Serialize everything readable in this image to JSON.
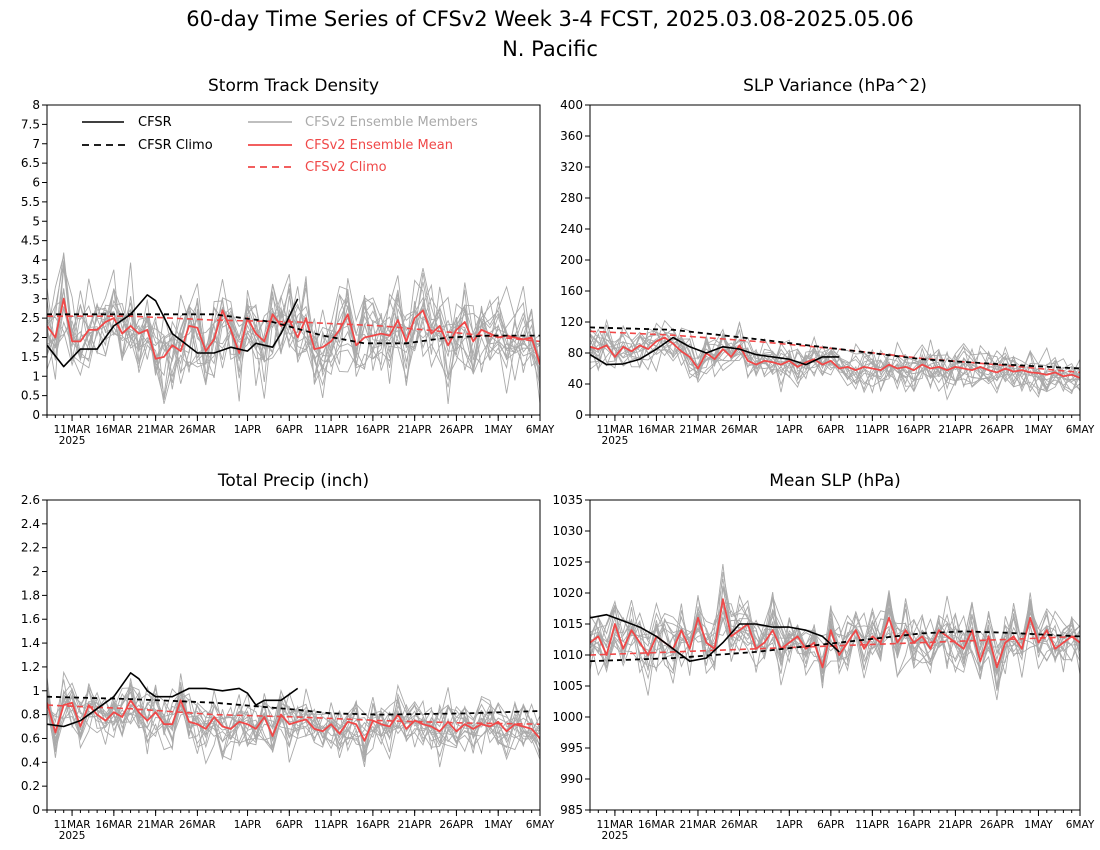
{
  "figure": {
    "title_line1": "60-day Time Series of CFSv2 Week 3-4 FCST, 2025.03.08-2025.05.06",
    "title_line2": "N. Pacific"
  },
  "colors": {
    "cfsr": "#000000",
    "ensemble_member": "#aaaaaa",
    "ensemble_mean": "#f04848",
    "cfsv2_climo": "#f04848"
  },
  "legend": {
    "cfsr": "CFSR",
    "cfsr_climo": "CFSR Climo",
    "members": "CFSv2 Ensemble Members",
    "mean": "CFSv2 Ensemble Mean",
    "cfsv2_climo": "CFSv2 Climo"
  },
  "x_axis": {
    "ticks": [
      {
        "day": 3,
        "label": "11MAR"
      },
      {
        "day": 8,
        "label": "16MAR"
      },
      {
        "day": 13,
        "label": "21MAR"
      },
      {
        "day": 18,
        "label": "26MAR"
      },
      {
        "day": 24,
        "label": "1APR"
      },
      {
        "day": 29,
        "label": "6APR"
      },
      {
        "day": 34,
        "label": "11APR"
      },
      {
        "day": 39,
        "label": "16APR"
      },
      {
        "day": 44,
        "label": "21APR"
      },
      {
        "day": 49,
        "label": "26APR"
      },
      {
        "day": 54,
        "label": "1MAY"
      },
      {
        "day": 59,
        "label": "6MAY"
      }
    ],
    "year_label": "2025",
    "range": [
      0,
      59
    ]
  },
  "chart_data": [
    {
      "type": "line",
      "title": "Storm Track Density",
      "ylim": [
        0,
        8
      ],
      "yticks": [
        "0",
        "0.5",
        "1",
        "1.5",
        "2",
        "2.5",
        "3",
        "3.5",
        "4",
        "4.5",
        "5",
        "5.5",
        "6",
        "6.5",
        "7",
        "7.5",
        "8"
      ],
      "has_legend": true,
      "member_stats": {
        "count": 16,
        "spread": 0.7
      },
      "series": [
        {
          "role": "cfsr",
          "x": [
            0,
            2,
            4,
            6,
            8,
            10,
            12,
            13,
            15,
            18,
            20,
            22,
            24,
            25,
            27,
            28,
            30
          ],
          "y": [
            1.8,
            1.25,
            1.7,
            1.7,
            2.3,
            2.6,
            3.1,
            2.95,
            2.1,
            1.6,
            1.6,
            1.75,
            1.65,
            1.85,
            1.75,
            2.1,
            3.0
          ]
        },
        {
          "role": "cfsr_climo",
          "x": [
            0,
            10,
            20,
            27,
            33,
            38,
            43,
            48,
            53,
            59
          ],
          "y": [
            2.6,
            2.6,
            2.6,
            2.4,
            2.05,
            1.85,
            1.85,
            2.0,
            2.05,
            2.05
          ]
        },
        {
          "role": "mean",
          "x": [
            0,
            1,
            2,
            3,
            4,
            5,
            6,
            7,
            8,
            9,
            10,
            11,
            12,
            13,
            14,
            15,
            16,
            17,
            18,
            19,
            20,
            21,
            22,
            23,
            24,
            25,
            26,
            27,
            28,
            29,
            30,
            31,
            32,
            33,
            34,
            35,
            36,
            37,
            38,
            39,
            40,
            41,
            42,
            43,
            44,
            45,
            46,
            47,
            48,
            49,
            50,
            51,
            52,
            53,
            54,
            55,
            56,
            57,
            58,
            59
          ],
          "y": [
            2.3,
            2.0,
            3.0,
            1.9,
            1.9,
            2.2,
            2.2,
            2.4,
            2.5,
            2.1,
            2.3,
            2.1,
            2.2,
            1.45,
            1.5,
            1.8,
            1.65,
            2.3,
            2.25,
            1.65,
            1.95,
            2.7,
            2.2,
            1.6,
            2.5,
            2.1,
            1.9,
            2.6,
            2.3,
            2.45,
            2.0,
            2.5,
            1.7,
            1.75,
            1.9,
            2.2,
            2.6,
            1.8,
            2.0,
            2.05,
            2.1,
            2.05,
            2.45,
            1.9,
            2.5,
            2.7,
            2.1,
            2.3,
            1.8,
            2.2,
            2.4,
            1.9,
            2.2,
            2.1,
            2.0,
            2.05,
            2.0,
            1.95,
            2.0,
            1.3
          ]
        },
        {
          "role": "cfsv2_climo",
          "x": [
            0,
            10,
            20,
            30,
            40,
            50,
            59
          ],
          "y": [
            2.55,
            2.55,
            2.45,
            2.4,
            2.3,
            2.1,
            1.9
          ]
        }
      ]
    },
    {
      "type": "line",
      "title": "SLP Variance (hPa^2)",
      "ylim": [
        0,
        400
      ],
      "yticks": [
        "0",
        "40",
        "80",
        "120",
        "160",
        "200",
        "240",
        "280",
        "320",
        "360",
        "400"
      ],
      "has_legend": false,
      "member_stats": {
        "count": 16,
        "spread": 17
      },
      "series": [
        {
          "role": "cfsr",
          "x": [
            0,
            2,
            4,
            6,
            8,
            10,
            12,
            14,
            16,
            18,
            20,
            22,
            24,
            26,
            28,
            30
          ],
          "y": [
            78,
            65,
            66,
            72,
            85,
            100,
            88,
            80,
            88,
            85,
            78,
            75,
            72,
            65,
            75,
            75
          ]
        },
        {
          "role": "cfsr_climo",
          "x": [
            0,
            10,
            20,
            30,
            40,
            50,
            59
          ],
          "y": [
            113,
            110,
            98,
            85,
            72,
            65,
            60
          ]
        },
        {
          "role": "mean",
          "x": [
            0,
            1,
            2,
            3,
            4,
            5,
            6,
            7,
            8,
            9,
            10,
            11,
            12,
            13,
            14,
            15,
            16,
            17,
            18,
            19,
            20,
            21,
            22,
            23,
            24,
            25,
            26,
            27,
            28,
            29,
            30,
            31,
            32,
            33,
            34,
            35,
            36,
            37,
            38,
            39,
            40,
            41,
            42,
            43,
            44,
            45,
            46,
            47,
            48,
            49,
            50,
            51,
            52,
            53,
            54,
            55,
            56,
            57,
            58,
            59
          ],
          "y": [
            88,
            85,
            90,
            75,
            88,
            82,
            90,
            85,
            95,
            100,
            92,
            82,
            75,
            60,
            80,
            72,
            85,
            75,
            90,
            70,
            65,
            70,
            68,
            65,
            70,
            62,
            68,
            72,
            65,
            70,
            60,
            62,
            58,
            62,
            60,
            58,
            65,
            60,
            62,
            58,
            65,
            60,
            62,
            58,
            62,
            60,
            58,
            62,
            58,
            55,
            60,
            56,
            58,
            55,
            54,
            52,
            55,
            50,
            52,
            48
          ]
        },
        {
          "role": "cfsv2_climo",
          "x": [
            0,
            10,
            20,
            30,
            40,
            50,
            59
          ],
          "y": [
            108,
            103,
            95,
            85,
            73,
            64,
            55
          ]
        }
      ]
    },
    {
      "type": "line",
      "title": "Total Precip (inch)",
      "ylim": [
        0,
        2.6
      ],
      "yticks": [
        "0",
        "0.2",
        "0.4",
        "0.6",
        "0.8",
        "1",
        "1.2",
        "1.4",
        "1.6",
        "1.8",
        "2",
        "2.2",
        "2.4",
        "2.6"
      ],
      "has_legend": false,
      "member_stats": {
        "count": 16,
        "spread": 0.14
      },
      "series": [
        {
          "role": "cfsr",
          "x": [
            0,
            2,
            4,
            6,
            8,
            10,
            11,
            12,
            13,
            15,
            17,
            19,
            21,
            23,
            24,
            25,
            26,
            28,
            30
          ],
          "y": [
            0.72,
            0.7,
            0.75,
            0.85,
            0.95,
            1.15,
            1.1,
            1.0,
            0.95,
            0.95,
            1.02,
            1.02,
            1.0,
            1.02,
            0.98,
            0.88,
            0.92,
            0.92,
            1.02
          ]
        },
        {
          "role": "cfsr_climo",
          "x": [
            0,
            10,
            20,
            30,
            34,
            40,
            50,
            59
          ],
          "y": [
            0.95,
            0.93,
            0.9,
            0.84,
            0.81,
            0.8,
            0.81,
            0.83
          ]
        },
        {
          "role": "mean",
          "x": [
            0,
            1,
            2,
            3,
            4,
            5,
            6,
            7,
            8,
            9,
            10,
            11,
            12,
            13,
            14,
            15,
            16,
            17,
            18,
            19,
            20,
            21,
            22,
            23,
            24,
            25,
            26,
            27,
            28,
            29,
            30,
            31,
            32,
            33,
            34,
            35,
            36,
            37,
            38,
            39,
            40,
            41,
            42,
            43,
            44,
            45,
            46,
            47,
            48,
            49,
            50,
            51,
            52,
            53,
            54,
            55,
            56,
            57,
            58,
            59
          ],
          "y": [
            0.9,
            0.65,
            0.88,
            0.9,
            0.7,
            0.88,
            0.8,
            0.75,
            0.82,
            0.78,
            0.92,
            0.82,
            0.75,
            0.82,
            0.72,
            0.72,
            0.92,
            0.74,
            0.72,
            0.68,
            0.78,
            0.7,
            0.68,
            0.74,
            0.72,
            0.68,
            0.78,
            0.62,
            0.8,
            0.72,
            0.74,
            0.76,
            0.68,
            0.66,
            0.72,
            0.64,
            0.74,
            0.72,
            0.58,
            0.75,
            0.72,
            0.7,
            0.8,
            0.68,
            0.75,
            0.72,
            0.7,
            0.66,
            0.74,
            0.66,
            0.72,
            0.68,
            0.72,
            0.7,
            0.74,
            0.66,
            0.72,
            0.7,
            0.68,
            0.6
          ]
        },
        {
          "role": "cfsv2_climo",
          "x": [
            0,
            10,
            20,
            30,
            40,
            50,
            59
          ],
          "y": [
            0.88,
            0.85,
            0.8,
            0.78,
            0.75,
            0.73,
            0.72
          ]
        }
      ]
    },
    {
      "type": "line",
      "title": "Mean SLP (hPa)",
      "ylim": [
        985,
        1035
      ],
      "yticks": [
        "985",
        "990",
        "995",
        "1000",
        "1005",
        "1010",
        "1015",
        "1020",
        "1025",
        "1030",
        "1035"
      ],
      "has_legend": false,
      "member_stats": {
        "count": 16,
        "spread": 3.0
      },
      "series": [
        {
          "role": "cfsr",
          "x": [
            0,
            2,
            4,
            6,
            8,
            10,
            12,
            14,
            16,
            18,
            20,
            22,
            24,
            26,
            28,
            30
          ],
          "y": [
            1016,
            1016.5,
            1015.5,
            1014.5,
            1013,
            1011,
            1009,
            1009.5,
            1012,
            1015,
            1015,
            1014.5,
            1014.5,
            1014,
            1013,
            1010.5
          ]
        },
        {
          "role": "cfsr_climo",
          "x": [
            0,
            10,
            20,
            30,
            40,
            45,
            50,
            59
          ],
          "y": [
            1009,
            1009.5,
            1010.5,
            1012,
            1013.5,
            1013.8,
            1013.6,
            1013
          ]
        },
        {
          "role": "mean",
          "x": [
            0,
            1,
            2,
            3,
            4,
            5,
            6,
            7,
            8,
            9,
            10,
            11,
            12,
            13,
            14,
            15,
            16,
            17,
            18,
            19,
            20,
            21,
            22,
            23,
            24,
            25,
            26,
            27,
            28,
            29,
            30,
            31,
            32,
            33,
            34,
            35,
            36,
            37,
            38,
            39,
            40,
            41,
            42,
            43,
            44,
            45,
            46,
            47,
            48,
            49,
            50,
            51,
            52,
            53,
            54,
            55,
            56,
            57,
            58,
            59
          ],
          "y": [
            1012,
            1013,
            1010,
            1015,
            1011,
            1014,
            1012,
            1010,
            1013,
            1012,
            1011,
            1014,
            1011,
            1016,
            1012,
            1011,
            1019,
            1013,
            1014,
            1015,
            1011,
            1012,
            1014,
            1011,
            1012,
            1013,
            1011,
            1012,
            1008,
            1014,
            1010,
            1012,
            1014,
            1011,
            1013,
            1012,
            1016,
            1012,
            1014,
            1012,
            1013,
            1011,
            1014,
            1013,
            1012,
            1011,
            1014,
            1009,
            1013,
            1008,
            1012,
            1013,
            1011,
            1016,
            1012,
            1014,
            1011,
            1012,
            1013,
            1012
          ]
        },
        {
          "role": "cfsv2_climo",
          "x": [
            0,
            10,
            20,
            30,
            40,
            50,
            59
          ],
          "y": [
            1010,
            1010.5,
            1011,
            1011.5,
            1012,
            1012.5,
            1013
          ]
        }
      ]
    }
  ]
}
